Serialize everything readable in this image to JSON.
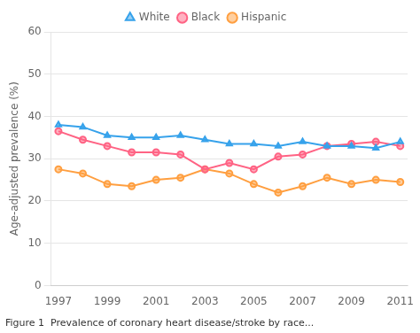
{
  "chart_data": {
    "type": "line",
    "ylabel": "Age-adjusted prevalence (%)",
    "caption": "Figure 1  Prevalence of coronary heart disease/stroke by race...",
    "x": [
      1997,
      1998,
      1999,
      2000,
      2001,
      2002,
      2003,
      2004,
      2005,
      2006,
      2007,
      2008,
      2009,
      2010,
      2011
    ],
    "series": [
      {
        "name": "White",
        "marker": "triangle",
        "values": [
          38.0,
          37.5,
          35.5,
          35.0,
          35.0,
          35.5,
          34.5,
          33.5,
          33.5,
          33.0,
          34.0,
          33.0,
          33.0,
          32.5,
          34.0
        ]
      },
      {
        "name": "Black",
        "marker": "circle",
        "values": [
          36.5,
          34.5,
          33.0,
          31.5,
          31.5,
          31.0,
          27.5,
          29.0,
          27.5,
          30.5,
          31.0,
          33.0,
          33.5,
          34.0,
          33.0
        ]
      },
      {
        "name": "Hispanic",
        "marker": "circle",
        "values": [
          27.5,
          26.5,
          24.0,
          23.5,
          25.0,
          25.5,
          27.5,
          26.5,
          24.0,
          22.0,
          23.5,
          25.5,
          24.0,
          25.0,
          24.5
        ]
      }
    ],
    "xlim": [
      1996.7,
      2011.3
    ],
    "xticks": [
      1997,
      1999,
      2001,
      2003,
      2005,
      2007,
      2009,
      2011
    ],
    "ylim": [
      0,
      60
    ],
    "yticks": [
      0,
      10,
      20,
      30,
      40,
      50,
      60
    ],
    "grid": "y",
    "legend": "upper center"
  }
}
